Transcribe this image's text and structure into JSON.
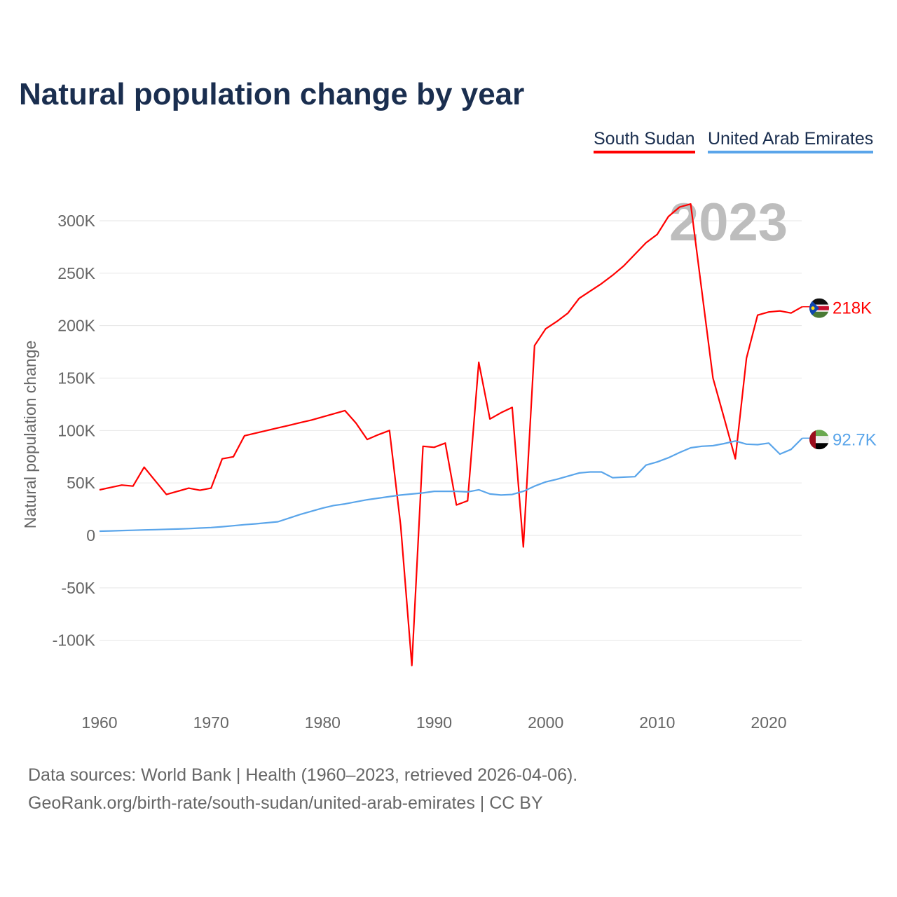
{
  "title": "Natural population change by year",
  "legend": [
    "South Sudan",
    "United Arab Emirates"
  ],
  "footer": {
    "line1": "Data sources: World Bank | Health (1960–2023, retrieved 2026-04-06).",
    "line2": "GeoRank.org/birth-rate/south-sudan/united-arab-emirates | CC BY"
  },
  "chart_data": {
    "type": "line",
    "title": "Natural population change by year",
    "xlabel": "",
    "ylabel": "Natural population change",
    "year_label": "2023",
    "xlim": [
      1960,
      2023
    ],
    "ylim": [
      -150000,
      330000
    ],
    "x_ticks": [
      1960,
      1970,
      1980,
      1990,
      2000,
      2010,
      2020
    ],
    "y_ticks": [
      {
        "v": 300000,
        "l": "300K"
      },
      {
        "v": 250000,
        "l": "250K"
      },
      {
        "v": 200000,
        "l": "200K"
      },
      {
        "v": 150000,
        "l": "150K"
      },
      {
        "v": 100000,
        "l": "100K"
      },
      {
        "v": 50000,
        "l": "50K"
      },
      {
        "v": 0,
        "l": "0"
      },
      {
        "v": -50000,
        "l": "-50K"
      },
      {
        "v": -100000,
        "l": "-100K"
      }
    ],
    "x": [
      1960,
      1961,
      1962,
      1963,
      1964,
      1965,
      1966,
      1967,
      1968,
      1969,
      1970,
      1971,
      1972,
      1973,
      1974,
      1975,
      1976,
      1977,
      1978,
      1979,
      1980,
      1981,
      1982,
      1983,
      1984,
      1985,
      1986,
      1987,
      1988,
      1989,
      1990,
      1991,
      1992,
      1993,
      1994,
      1995,
      1996,
      1997,
      1998,
      1999,
      2000,
      2001,
      2002,
      2003,
      2004,
      2005,
      2006,
      2007,
      2008,
      2009,
      2010,
      2011,
      2012,
      2013,
      2014,
      2015,
      2016,
      2017,
      2018,
      2019,
      2020,
      2021,
      2022,
      2023
    ],
    "series": [
      {
        "name": "South Sudan",
        "color": "#ff0000",
        "end_label": "218K",
        "values": [
          43400,
          45700,
          48000,
          47000,
          65000,
          52000,
          39000,
          42000,
          45000,
          43000,
          45000,
          73000,
          75000,
          95000,
          97500,
          100000,
          102500,
          105000,
          107500,
          110000,
          113000,
          116000,
          119000,
          107000,
          91500,
          96000,
          100000,
          9000,
          -124000,
          85000,
          84000,
          88000,
          29000,
          33000,
          165000,
          111000,
          117000,
          122000,
          -11000,
          181000,
          197000,
          204000,
          212000,
          226000,
          233000,
          240000,
          248000,
          257000,
          268000,
          279000,
          287000,
          304000,
          313000,
          316000,
          233000,
          150000,
          112000,
          73000,
          169000,
          210000,
          213000,
          214000,
          212000,
          218000
        ]
      },
      {
        "name": "United Arab Emirates",
        "color": "#5aa5ea",
        "end_label": "92.7K",
        "values": [
          4000,
          4300,
          4600,
          4900,
          5200,
          5500,
          5800,
          6100,
          6500,
          7000,
          7500,
          8300,
          9200,
          10200,
          11000,
          12000,
          13000,
          16500,
          20000,
          23000,
          26000,
          28500,
          30000,
          32000,
          34000,
          35500,
          37000,
          38500,
          39500,
          40500,
          42000,
          42000,
          42000,
          41500,
          43500,
          39500,
          38500,
          39000,
          42000,
          47000,
          51000,
          53500,
          56500,
          59500,
          60500,
          60500,
          55000,
          55500,
          56000,
          67000,
          70000,
          74000,
          79000,
          83500,
          85000,
          85500,
          87500,
          90000,
          87000,
          86500,
          88000,
          77500,
          82000,
          92700
        ]
      }
    ]
  }
}
